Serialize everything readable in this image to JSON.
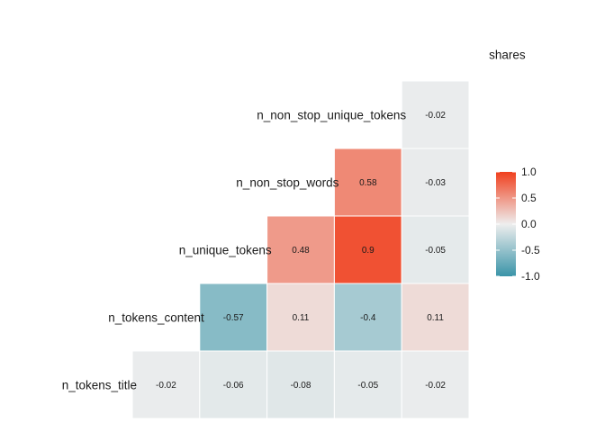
{
  "chart_data": {
    "type": "heatmap",
    "variables": [
      "n_tokens_title",
      "n_tokens_content",
      "n_unique_tokens",
      "n_non_stop_words",
      "n_non_stop_unique_tokens",
      "shares"
    ],
    "cells": [
      {
        "row": "n_tokens_content",
        "col": "n_tokens_title",
        "value": -0.02,
        "label": "-0.02"
      },
      {
        "row": "n_unique_tokens",
        "col": "n_tokens_title",
        "value": -0.06,
        "label": "-0.06"
      },
      {
        "row": "n_unique_tokens",
        "col": "n_tokens_content",
        "value": -0.57,
        "label": "-0.57"
      },
      {
        "row": "n_non_stop_words",
        "col": "n_tokens_title",
        "value": -0.08,
        "label": "-0.08"
      },
      {
        "row": "n_non_stop_words",
        "col": "n_tokens_content",
        "value": 0.11,
        "label": "0.11"
      },
      {
        "row": "n_non_stop_words",
        "col": "n_unique_tokens",
        "value": 0.48,
        "label": "0.48"
      },
      {
        "row": "n_non_stop_unique_tokens",
        "col": "n_tokens_title",
        "value": -0.05,
        "label": "-0.05"
      },
      {
        "row": "n_non_stop_unique_tokens",
        "col": "n_tokens_content",
        "value": -0.4,
        "label": "-0.4"
      },
      {
        "row": "n_non_stop_unique_tokens",
        "col": "n_unique_tokens",
        "value": 0.9,
        "label": "0.9"
      },
      {
        "row": "n_non_stop_unique_tokens",
        "col": "n_non_stop_words",
        "value": 0.58,
        "label": "0.58"
      },
      {
        "row": "shares",
        "col": "n_tokens_title",
        "value": -0.02,
        "label": "-0.02"
      },
      {
        "row": "shares",
        "col": "n_tokens_content",
        "value": 0.11,
        "label": "0.11"
      },
      {
        "row": "shares",
        "col": "n_unique_tokens",
        "value": -0.05,
        "label": "-0.05"
      },
      {
        "row": "shares",
        "col": "n_non_stop_words",
        "value": -0.03,
        "label": "-0.03"
      },
      {
        "row": "shares",
        "col": "n_non_stop_unique_tokens",
        "value": -0.02,
        "label": "-0.02"
      }
    ],
    "color_scale": {
      "low": "#3a94a8",
      "mid": "#eeeeee",
      "high": "#f0401e",
      "limits": [
        -1,
        1
      ],
      "ticks": [
        1.0,
        0.5,
        0.0,
        -0.5,
        -1.0
      ],
      "tick_labels": [
        "1.0",
        "0.5",
        "0.0",
        "-0.5",
        "-1.0"
      ]
    },
    "legend": "right",
    "grid": false
  }
}
